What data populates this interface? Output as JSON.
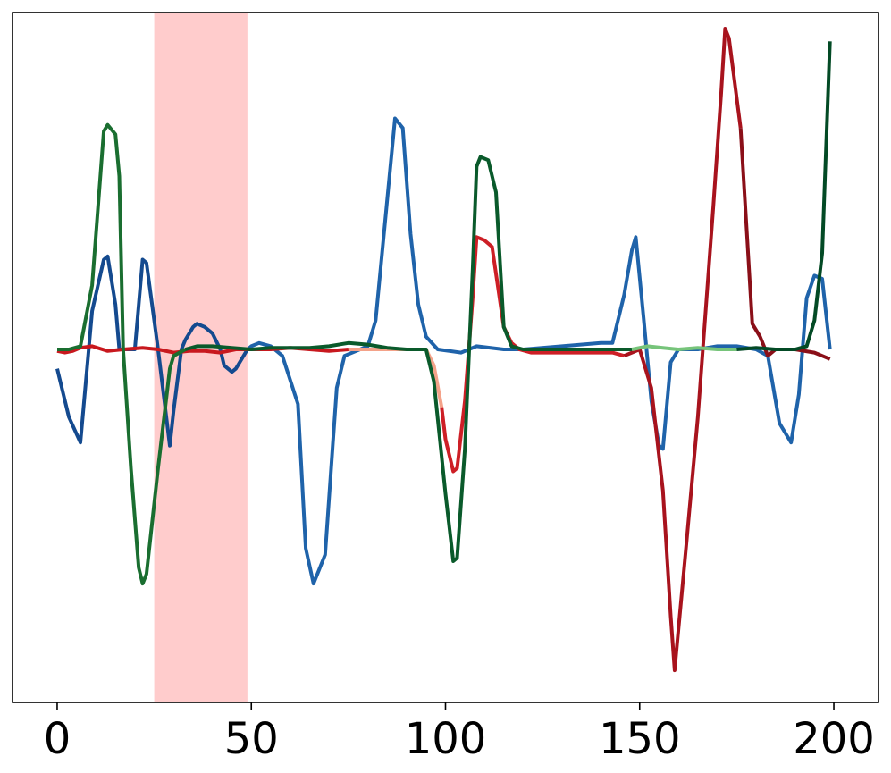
{
  "chart_data": {
    "type": "line",
    "xlim": [
      -11.5,
      211.5
    ],
    "ylim": [
      -1.1,
      1.05
    ],
    "x_ticks": [
      0,
      50,
      100,
      150,
      200
    ],
    "x_tick_labels": [
      "0",
      "50",
      "100",
      "150",
      "200"
    ],
    "y_axis_visible": false,
    "grid": false,
    "legend": "none",
    "highlight_region": {
      "x": [
        25,
        49
      ],
      "color": "#ffcccc"
    },
    "series": [
      {
        "color": "#144a8f",
        "points": [
          [
            0,
            -0.06
          ],
          [
            3,
            -0.21
          ],
          [
            6,
            -0.29
          ],
          [
            9,
            0.12
          ],
          [
            12,
            0.28
          ],
          [
            13,
            0.29
          ],
          [
            15,
            0.14
          ],
          [
            16,
            0.0
          ],
          [
            20,
            0.0
          ],
          [
            22,
            0.28
          ],
          [
            23,
            0.27
          ],
          [
            26,
            0.0
          ],
          [
            29,
            -0.3
          ],
          [
            30,
            -0.19
          ],
          [
            32,
            0.0
          ],
          [
            33,
            0.03
          ],
          [
            35,
            0.07
          ],
          [
            36,
            0.08
          ],
          [
            38,
            0.07
          ],
          [
            40,
            0.05
          ],
          [
            42,
            0.0
          ],
          [
            43,
            -0.05
          ],
          [
            45,
            -0.07
          ],
          [
            46,
            -0.06
          ],
          [
            49,
            0.0
          ]
        ]
      },
      {
        "color": "#1f63aa",
        "points": [
          [
            49,
            0.0
          ],
          [
            50,
            0.01
          ],
          [
            52,
            0.02
          ],
          [
            55,
            0.01
          ],
          [
            58,
            -0.02
          ],
          [
            62,
            -0.17
          ],
          [
            64,
            -0.62
          ],
          [
            66,
            -0.73
          ],
          [
            69,
            -0.64
          ],
          [
            72,
            -0.12
          ],
          [
            74,
            -0.02
          ],
          [
            78,
            0.0
          ],
          [
            80,
            0.01
          ],
          [
            82,
            0.09
          ],
          [
            87,
            0.72
          ],
          [
            89,
            0.69
          ],
          [
            91,
            0.36
          ],
          [
            93,
            0.14
          ],
          [
            95,
            0.04
          ],
          [
            98,
            0.0
          ],
          [
            104,
            -0.01
          ],
          [
            108,
            0.01
          ],
          [
            115,
            0.0
          ],
          [
            120,
            0.0
          ],
          [
            130,
            0.01
          ],
          [
            140,
            0.02
          ],
          [
            143,
            0.02
          ],
          [
            146,
            0.17
          ],
          [
            148,
            0.31
          ],
          [
            149,
            0.35
          ],
          [
            151,
            0.1
          ],
          [
            153,
            -0.16
          ],
          [
            155,
            -0.3
          ],
          [
            156,
            -0.31
          ],
          [
            158,
            -0.04
          ],
          [
            160,
            0.0
          ],
          [
            165,
            0.0
          ],
          [
            170,
            0.01
          ],
          [
            175,
            0.01
          ],
          [
            180,
            0.0
          ],
          [
            183,
            -0.02
          ],
          [
            186,
            -0.23
          ],
          [
            189,
            -0.29
          ],
          [
            191,
            -0.14
          ],
          [
            193,
            0.16
          ],
          [
            195,
            0.23
          ],
          [
            197,
            0.22
          ],
          [
            199,
            0.0
          ]
        ]
      },
      {
        "color": "#c8181e",
        "points": [
          [
            0,
            -0.005
          ],
          [
            2,
            -0.01
          ],
          [
            4,
            -0.005
          ],
          [
            6,
            0.005
          ],
          [
            9,
            0.01
          ],
          [
            13,
            -0.005
          ],
          [
            17,
            0.0
          ],
          [
            22,
            0.005
          ],
          [
            26,
            0.0
          ],
          [
            30,
            -0.01
          ],
          [
            34,
            -0.005
          ],
          [
            38,
            -0.005
          ],
          [
            42,
            -0.01
          ],
          [
            46,
            0.0
          ],
          [
            50,
            0.0
          ],
          [
            55,
            0.0
          ],
          [
            60,
            0.005
          ],
          [
            65,
            0.0
          ],
          [
            70,
            -0.005
          ],
          [
            75,
            0.0
          ]
        ]
      },
      {
        "color": "#f4a289",
        "points": [
          [
            75,
            0.0
          ],
          [
            78,
            0.0
          ],
          [
            82,
            0.0
          ],
          [
            86,
            0.0
          ],
          [
            90,
            0.0
          ],
          [
            95,
            0.0
          ],
          [
            97,
            -0.05
          ],
          [
            99,
            -0.18
          ]
        ]
      },
      {
        "color": "#cd1f26",
        "points": [
          [
            99,
            -0.18
          ],
          [
            100,
            -0.28
          ],
          [
            102,
            -0.38
          ],
          [
            103,
            -0.37
          ],
          [
            105,
            -0.16
          ],
          [
            107,
            0.16
          ],
          [
            108,
            0.35
          ],
          [
            110,
            0.34
          ],
          [
            112,
            0.32
          ],
          [
            115,
            0.07
          ],
          [
            117,
            0.02
          ],
          [
            119,
            0.0
          ],
          [
            122,
            -0.01
          ],
          [
            125,
            -0.01
          ],
          [
            130,
            -0.01
          ],
          [
            135,
            -0.01
          ],
          [
            140,
            -0.01
          ],
          [
            143,
            -0.01
          ],
          [
            146,
            -0.02
          ]
        ]
      },
      {
        "color": "#a8131d",
        "points": [
          [
            146,
            -0.02
          ],
          [
            148,
            -0.01
          ],
          [
            150,
            0.0
          ],
          [
            153,
            -0.12
          ],
          [
            156,
            -0.44
          ],
          [
            158,
            -0.83
          ],
          [
            159,
            -1.0
          ],
          [
            162,
            -0.61
          ],
          [
            165,
            -0.21
          ],
          [
            169,
            0.45
          ],
          [
            171,
            0.8
          ],
          [
            172,
            1.0
          ],
          [
            173,
            0.97
          ],
          [
            176,
            0.69
          ]
        ]
      },
      {
        "color": "#8a0f18",
        "points": [
          [
            176,
            0.69
          ],
          [
            179,
            0.08
          ],
          [
            181,
            0.04
          ],
          [
            183,
            -0.02
          ],
          [
            185,
            0.0
          ],
          [
            190,
            0.0
          ],
          [
            195,
            -0.01
          ],
          [
            197,
            -0.02
          ],
          [
            199,
            -0.03
          ]
        ]
      },
      {
        "color": "#1a6e30",
        "points": [
          [
            0,
            0.0
          ],
          [
            3,
            0.0
          ],
          [
            6,
            0.01
          ],
          [
            9,
            0.2
          ],
          [
            12,
            0.68
          ],
          [
            13,
            0.7
          ],
          [
            15,
            0.67
          ],
          [
            16,
            0.54
          ],
          [
            17,
            0.0
          ],
          [
            19,
            -0.37
          ],
          [
            21,
            -0.68
          ],
          [
            22,
            -0.73
          ],
          [
            23,
            -0.7
          ],
          [
            26,
            -0.37
          ],
          [
            29,
            -0.06
          ],
          [
            30,
            -0.02
          ],
          [
            33,
            0.0
          ]
        ]
      },
      {
        "color": "#0a5a2b",
        "points": [
          [
            33,
            0.0
          ],
          [
            36,
            0.01
          ],
          [
            40,
            0.01
          ],
          [
            45,
            0.005
          ],
          [
            50,
            0.0
          ],
          [
            55,
            0.005
          ],
          [
            60,
            0.005
          ],
          [
            65,
            0.005
          ],
          [
            70,
            0.01
          ],
          [
            75,
            0.02
          ],
          [
            80,
            0.015
          ],
          [
            85,
            0.005
          ],
          [
            90,
            0.0
          ],
          [
            95,
            0.0
          ],
          [
            97,
            -0.1
          ],
          [
            100,
            -0.45
          ],
          [
            102,
            -0.66
          ],
          [
            103,
            -0.65
          ],
          [
            105,
            -0.31
          ],
          [
            107,
            0.25
          ],
          [
            108,
            0.57
          ],
          [
            109,
            0.6
          ],
          [
            111,
            0.59
          ],
          [
            113,
            0.49
          ],
          [
            115,
            0.07
          ],
          [
            117,
            0.01
          ],
          [
            120,
            0.0
          ],
          [
            125,
            0.0
          ],
          [
            130,
            0.0
          ],
          [
            135,
            0.0
          ],
          [
            140,
            0.0
          ],
          [
            145,
            0.0
          ],
          [
            148,
            0.0
          ]
        ]
      },
      {
        "color": "#76c47a",
        "points": [
          [
            148,
            0.0
          ],
          [
            152,
            0.01
          ],
          [
            156,
            0.005
          ],
          [
            160,
            0.0
          ],
          [
            165,
            0.005
          ],
          [
            170,
            0.0
          ],
          [
            175,
            0.0
          ]
        ]
      },
      {
        "color": "#034a25",
        "points": [
          [
            175,
            0.0
          ],
          [
            180,
            0.005
          ],
          [
            185,
            0.0
          ],
          [
            190,
            0.0
          ],
          [
            193,
            0.01
          ],
          [
            195,
            0.09
          ],
          [
            197,
            0.3
          ],
          [
            199,
            0.96
          ]
        ]
      }
    ]
  }
}
